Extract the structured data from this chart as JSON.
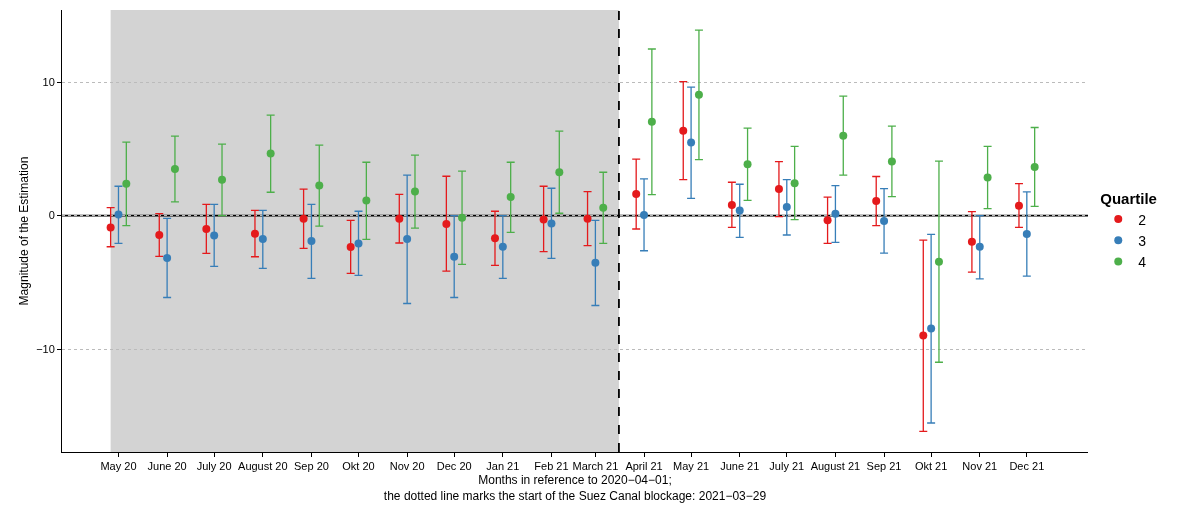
{
  "chart_data": {
    "type": "scatter",
    "xlabel": "Months in reference to 2020−04−01;\nthe dotted line marks the start of the Suez Canal blockage: 2021−03−29",
    "ylabel": "Magnitude of the Estimation",
    "legend_title": "Quartile",
    "xlim": [
      "2020-03-26",
      "2022-01-09"
    ],
    "xticks": [
      {
        "value": "2020-05",
        "label": "May 20"
      },
      {
        "value": "2020-06",
        "label": "June 20"
      },
      {
        "value": "2020-07",
        "label": "July 20"
      },
      {
        "value": "2020-08",
        "label": "August 20"
      },
      {
        "value": "2020-09",
        "label": "Sep 20"
      },
      {
        "value": "2020-10",
        "label": "Okt 20"
      },
      {
        "value": "2020-11",
        "label": "Nov 20"
      },
      {
        "value": "2020-12",
        "label": "Dec 20"
      },
      {
        "value": "2021-01",
        "label": "Jan 21"
      },
      {
        "value": "2021-02",
        "label": "Feb 21"
      },
      {
        "value": "2021-03",
        "label": "March 21"
      },
      {
        "value": "2021-04",
        "label": "April 21"
      },
      {
        "value": "2021-05",
        "label": "May 21"
      },
      {
        "value": "2021-06",
        "label": "June 21"
      },
      {
        "value": "2021-07",
        "label": "July 21"
      },
      {
        "value": "2021-08",
        "label": "August 21"
      },
      {
        "value": "2021-09",
        "label": "Sep 21"
      },
      {
        "value": "2021-10",
        "label": "Okt 21"
      },
      {
        "value": "2021-11",
        "label": "Nov 21"
      },
      {
        "value": "2021-12",
        "label": "Dec 21"
      }
    ],
    "ylim": [
      -17.7,
      15.4
    ],
    "yticks": [
      {
        "value": -10,
        "label": "−10"
      },
      0,
      10
    ],
    "grid": "y",
    "legend": "right",
    "marker": "circle",
    "series": [
      {
        "name": "2",
        "color": "#e41a1c",
        "x": [
          "2020-04-26",
          "2020-05-27",
          "2020-06-26",
          "2020-07-27",
          "2020-08-27",
          "2020-09-26",
          "2020-10-27",
          "2020-11-26",
          "2020-12-27",
          "2021-01-27",
          "2021-02-24",
          "2021-03-27",
          "2021-04-26",
          "2021-05-27",
          "2021-06-26",
          "2021-07-27",
          "2021-08-27",
          "2021-09-26",
          "2021-10-27",
          "2021-11-26"
        ],
        "values": [
          -0.88,
          -1.45,
          -1.0,
          -1.35,
          -0.23,
          -2.35,
          -0.23,
          -0.63,
          -1.7,
          -0.28,
          -0.23,
          1.63,
          6.35,
          0.8,
          2.0,
          -0.35,
          1.1,
          -8.98,
          -1.95,
          0.75
        ],
        "errors": [
          [
            -2.33,
            0.6
          ],
          [
            -3.05,
            0.15
          ],
          [
            -2.83,
            0.85
          ],
          [
            -3.08,
            0.4
          ],
          [
            -2.45,
            1.98
          ],
          [
            -4.33,
            -0.35
          ],
          [
            -2.05,
            1.6
          ],
          [
            -4.15,
            2.95
          ],
          [
            -3.73,
            0.33
          ],
          [
            -2.7,
            2.2
          ],
          [
            -2.25,
            1.8
          ],
          [
            -1.0,
            4.23
          ],
          [
            2.7,
            10.03
          ],
          [
            -0.88,
            2.5
          ],
          [
            -0.08,
            4.05
          ],
          [
            -2.08,
            1.38
          ],
          [
            -0.75,
            2.93
          ],
          [
            -16.15,
            -1.83
          ],
          [
            -4.23,
            0.3
          ],
          [
            -0.88,
            2.4
          ]
        ]
      },
      {
        "name": "3",
        "color": "#377eb8",
        "x": [
          "2020-05-01",
          "2020-06-01",
          "2020-07-01",
          "2020-08-01",
          "2020-09-01",
          "2020-10-01",
          "2020-11-01",
          "2020-12-01",
          "2021-01-01",
          "2021-02-01",
          "2021-03-01",
          "2021-04-01",
          "2021-05-01",
          "2021-06-01",
          "2021-07-01",
          "2021-08-01",
          "2021-09-01",
          "2021-10-01",
          "2021-11-01",
          "2021-12-01"
        ],
        "values": [
          0.08,
          -3.18,
          -1.48,
          -1.75,
          -1.9,
          -2.08,
          -1.75,
          -3.08,
          -2.33,
          -0.58,
          -3.53,
          0.05,
          5.48,
          0.38,
          0.65,
          0.15,
          -0.4,
          -8.45,
          -2.33,
          -1.38
        ],
        "errors": [
          [
            -2.08,
            2.2
          ],
          [
            -6.13,
            -0.2
          ],
          [
            -3.8,
            0.85
          ],
          [
            -3.95,
            0.4
          ],
          [
            -4.7,
            0.85
          ],
          [
            -4.48,
            0.33
          ],
          [
            -6.58,
            3.03
          ],
          [
            -6.13,
            0.0
          ],
          [
            -4.7,
            0.0
          ],
          [
            -3.2,
            2.05
          ],
          [
            -6.73,
            -0.35
          ],
          [
            -2.63,
            2.75
          ],
          [
            1.3,
            9.63
          ],
          [
            -1.63,
            2.35
          ],
          [
            -1.45,
            2.7
          ],
          [
            -2.0,
            2.25
          ],
          [
            -2.8,
            2.03
          ],
          [
            -15.53,
            -1.4
          ],
          [
            -4.73,
            0.0
          ],
          [
            -4.53,
            1.78
          ]
        ]
      },
      {
        "name": "4",
        "color": "#4daf4a",
        "x": [
          "2020-05-06",
          "2020-06-06",
          "2020-07-06",
          "2020-08-06",
          "2020-09-06",
          "2020-10-06",
          "2020-11-06",
          "2020-12-06",
          "2021-01-06",
          "2021-02-06",
          "2021-03-06",
          "2021-04-06",
          "2021-05-06",
          "2021-06-06",
          "2021-07-06",
          "2021-08-06",
          "2021-09-06",
          "2021-10-06",
          "2021-11-06",
          "2021-12-06"
        ],
        "values": [
          2.38,
          3.5,
          2.68,
          4.65,
          2.25,
          1.13,
          1.8,
          -0.15,
          1.4,
          3.25,
          0.6,
          7.03,
          9.05,
          3.85,
          2.43,
          5.98,
          4.05,
          -3.45,
          2.85,
          3.65
        ],
        "errors": [
          [
            -0.75,
            5.5
          ],
          [
            1.03,
            5.95
          ],
          [
            0.0,
            5.35
          ],
          [
            1.75,
            7.53
          ],
          [
            -0.78,
            5.28
          ],
          [
            -1.78,
            4.0
          ],
          [
            -0.93,
            4.53
          ],
          [
            -3.65,
            3.33
          ],
          [
            -1.25,
            4.0
          ],
          [
            0.18,
            6.33
          ],
          [
            -2.08,
            3.25
          ],
          [
            1.58,
            12.48
          ],
          [
            4.2,
            13.9
          ],
          [
            1.15,
            6.55
          ],
          [
            -0.3,
            5.18
          ],
          [
            3.03,
            8.95
          ],
          [
            1.43,
            6.7
          ],
          [
            -10.98,
            4.08
          ],
          [
            0.53,
            5.18
          ],
          [
            0.7,
            6.6
          ]
        ]
      }
    ],
    "ref_lines": [
      {
        "axis": "y",
        "value": 0,
        "color": "#000000",
        "line_style": "solid"
      },
      {
        "axis": "x",
        "value": "2021-03-16",
        "color": "#000000",
        "line_style": "dashed"
      }
    ],
    "bands": [
      {
        "axis": "x",
        "from": "2020-04-26",
        "to": "2021-03-16",
        "color": "#d3d3d3"
      }
    ]
  }
}
